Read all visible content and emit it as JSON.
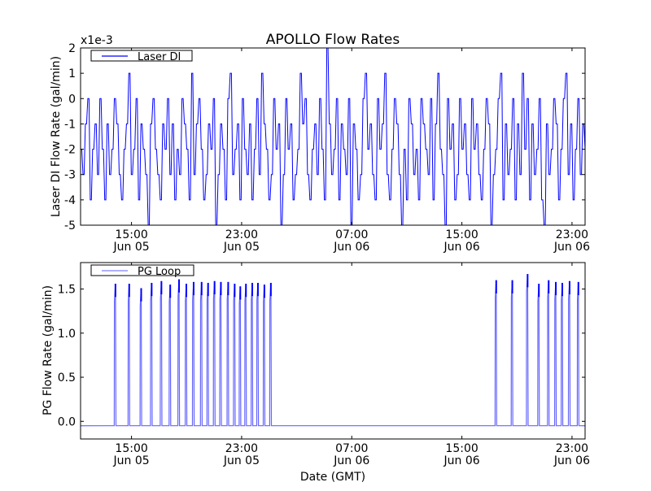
{
  "chart_data": [
    {
      "type": "line",
      "title": "APOLLO Flow Rates",
      "ylabel": "Laser DI Flow Rate (gal/min)",
      "y_scale_label": "x1e-3",
      "ylim": [
        -5,
        2
      ],
      "yticks": [
        2,
        1,
        0,
        -1,
        -2,
        -3,
        -4,
        -5
      ],
      "xlim_hours_from_jun05": [
        11.3,
        47.95
      ],
      "xticks": [
        {
          "hour": 15,
          "time": "15:00",
          "date": "Jun 05"
        },
        {
          "hour": 23,
          "time": "23:00",
          "date": "Jun 05"
        },
        {
          "hour": 31,
          "time": "07:00",
          "date": "Jun 06"
        },
        {
          "hour": 39,
          "time": "15:00",
          "date": "Jun 06"
        },
        {
          "hour": 47,
          "time": "23:00",
          "date": "Jun 06"
        }
      ],
      "legend": {
        "placement": "top-left",
        "entries": [
          "Laser DI"
        ]
      },
      "series": [
        {
          "name": "Laser DI",
          "color": "#0000ff",
          "x_start_hour": 11.3,
          "x_end_hour": 47.95,
          "values_e3": [
            -2,
            -3,
            -1,
            0,
            -4,
            -2,
            -1,
            -3,
            0,
            -2,
            -4,
            -1,
            -3,
            -2,
            0,
            -1,
            -3,
            -4,
            -2,
            -1,
            1,
            -3,
            -2,
            0,
            -4,
            -1,
            -2,
            -3,
            -5,
            -1,
            0,
            -2,
            -3,
            -4,
            -1,
            -2,
            0,
            -3,
            -1,
            -4,
            -2,
            -3,
            0,
            -1,
            -2,
            -4,
            1,
            -3,
            -1,
            0,
            -2,
            -4,
            -3,
            -1,
            -2,
            0,
            -5,
            -3,
            -1,
            -2,
            -4,
            0,
            1,
            -3,
            -2,
            -1,
            -4,
            0,
            -2,
            -3,
            -1,
            -4,
            -2,
            0,
            -3,
            1,
            -1,
            -2,
            -4,
            -3,
            0,
            -2,
            -1,
            -5,
            -3,
            0,
            -2,
            -1,
            -4,
            -3,
            -2,
            1,
            -1,
            0,
            -3,
            -4,
            -2,
            -1,
            -3,
            0,
            -2,
            -4,
            2,
            -1,
            -3,
            -2,
            0,
            -4,
            -1,
            -2,
            -3,
            0,
            -5,
            -1,
            -2,
            -4,
            -3,
            0,
            1,
            -2,
            -1,
            -3,
            -4,
            0,
            -2,
            -1,
            1,
            -3,
            -4,
            -2,
            0,
            -1,
            -3,
            -5,
            -2,
            -4,
            0,
            -1,
            -3,
            -2,
            -4,
            0,
            -1,
            -2,
            -3,
            0,
            -4,
            -1,
            1,
            -2,
            -3,
            -5,
            0,
            -2,
            -1,
            -4,
            -3,
            0,
            -2,
            -1,
            -3,
            -4,
            0,
            -2,
            -1,
            -3,
            -4,
            -2,
            0,
            -1,
            -5,
            -3,
            -2,
            0,
            1,
            -4,
            -1,
            -3,
            -2,
            0,
            -4,
            -1,
            -3,
            1,
            -2,
            0,
            -4,
            -1,
            -3,
            -2,
            0,
            -4,
            -5,
            -1,
            -3,
            -2,
            0,
            -1,
            -4,
            -2,
            0,
            1,
            -3,
            -1,
            -4,
            -2,
            0,
            -3,
            -1,
            -2
          ]
        }
      ]
    },
    {
      "type": "line",
      "ylabel": "PG Flow Rate (gal/min)",
      "xlabel": "Date (GMT)",
      "ylim": [
        -0.2,
        1.8
      ],
      "yticks": [
        "0.0",
        "0.5",
        "1.0",
        "1.5"
      ],
      "xlim_hours_from_jun05": [
        11.3,
        47.95
      ],
      "xticks": [
        {
          "hour": 15,
          "time": "15:00",
          "date": "Jun 05"
        },
        {
          "hour": 23,
          "time": "23:00",
          "date": "Jun 05"
        },
        {
          "hour": 31,
          "time": "07:00",
          "date": "Jun 06"
        },
        {
          "hour": 39,
          "time": "15:00",
          "date": "Jun 06"
        },
        {
          "hour": 47,
          "time": "23:00",
          "date": "Jun 06"
        }
      ],
      "legend": {
        "placement": "top-left",
        "entries": [
          "PG Loop"
        ]
      },
      "series": [
        {
          "name": "PG Loop",
          "color": "#0000ff",
          "baseline": -0.05,
          "pulse_width_hours": 0.12,
          "pulses": [
            {
              "hour": 13.87,
              "peak": 1.56
            },
            {
              "hour": 14.87,
              "peak": 1.56
            },
            {
              "hour": 15.74,
              "peak": 1.51
            },
            {
              "hour": 16.5,
              "peak": 1.57
            },
            {
              "hour": 17.21,
              "peak": 1.59
            },
            {
              "hour": 17.85,
              "peak": 1.55
            },
            {
              "hour": 18.49,
              "peak": 1.61
            },
            {
              "hour": 19.02,
              "peak": 1.56
            },
            {
              "hour": 19.55,
              "peak": 1.58
            },
            {
              "hour": 20.13,
              "peak": 1.58
            },
            {
              "hour": 20.6,
              "peak": 1.57
            },
            {
              "hour": 21.07,
              "peak": 1.59
            },
            {
              "hour": 21.53,
              "peak": 1.58
            },
            {
              "hour": 22.06,
              "peak": 1.58
            },
            {
              "hour": 22.53,
              "peak": 1.56
            },
            {
              "hour": 22.94,
              "peak": 1.53
            },
            {
              "hour": 23.35,
              "peak": 1.56
            },
            {
              "hour": 23.81,
              "peak": 1.57
            },
            {
              "hour": 24.22,
              "peak": 1.57
            },
            {
              "hour": 24.69,
              "peak": 1.55
            },
            {
              "hour": 25.16,
              "peak": 1.57
            },
            {
              "hour": 41.53,
              "peak": 1.6
            },
            {
              "hour": 42.7,
              "peak": 1.6
            },
            {
              "hour": 43.81,
              "peak": 1.67
            },
            {
              "hour": 44.63,
              "peak": 1.56
            },
            {
              "hour": 45.34,
              "peak": 1.6
            },
            {
              "hour": 45.86,
              "peak": 1.58
            },
            {
              "hour": 46.33,
              "peak": 1.57
            },
            {
              "hour": 46.86,
              "peak": 1.59
            },
            {
              "hour": 47.5,
              "peak": 1.58
            }
          ]
        }
      ]
    }
  ]
}
